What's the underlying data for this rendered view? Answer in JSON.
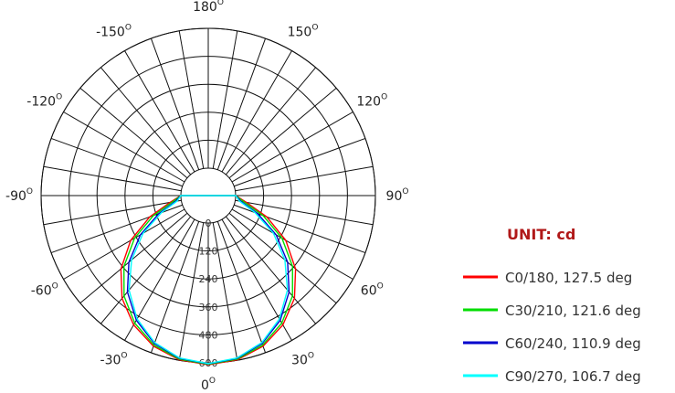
{
  "chart_data": {
    "type": "polar",
    "unit_label": "UNIT: cd",
    "angle_labels": [
      {
        "deg": 180,
        "label": "180"
      },
      {
        "deg": 150,
        "label": "150"
      },
      {
        "deg": 120,
        "label": "120"
      },
      {
        "deg": 90,
        "label": "90"
      },
      {
        "deg": 60,
        "label": "60"
      },
      {
        "deg": 30,
        "label": "30"
      },
      {
        "deg": 0,
        "label": "0"
      },
      {
        "deg": -30,
        "label": "-30"
      },
      {
        "deg": -60,
        "label": "-60"
      },
      {
        "deg": -90,
        "label": "-90"
      },
      {
        "deg": -120,
        "label": "-120"
      },
      {
        "deg": -150,
        "label": "-150"
      }
    ],
    "degree_symbol": "O",
    "radial_ticks": [
      0,
      120,
      240,
      360,
      480,
      600
    ],
    "radial_range": [
      -120,
      600
    ],
    "angular_grid_step_deg": 10,
    "series": [
      {
        "name": "C0/180, 127.5 deg",
        "color": "#ff0000",
        "angles": [
          0,
          10,
          20,
          30,
          40,
          50,
          60,
          70,
          80,
          90
        ],
        "values": [
          608,
          598,
          570,
          523,
          458,
          372,
          267,
          150,
          48,
          0
        ]
      },
      {
        "name": "C30/210, 121.6 deg",
        "color": "#00dd00",
        "angles": [
          0,
          10,
          20,
          30,
          40,
          50,
          60,
          70,
          80,
          90
        ],
        "values": [
          606,
          595,
          565,
          514,
          445,
          355,
          248,
          133,
          38,
          0
        ]
      },
      {
        "name": "C60/240, 110.9 deg",
        "color": "#0000cc",
        "angles": [
          0,
          10,
          20,
          30,
          40,
          50,
          60,
          70,
          80,
          90
        ],
        "values": [
          604,
          592,
          558,
          500,
          422,
          327,
          219,
          108,
          25,
          0
        ]
      },
      {
        "name": "C90/270, 106.7 deg",
        "color": "#00ffff",
        "angles": [
          0,
          10,
          20,
          30,
          40,
          50,
          60,
          70,
          80,
          90
        ],
        "values": [
          603,
          590,
          554,
          493,
          411,
          312,
          205,
          96,
          18,
          0
        ]
      }
    ]
  }
}
